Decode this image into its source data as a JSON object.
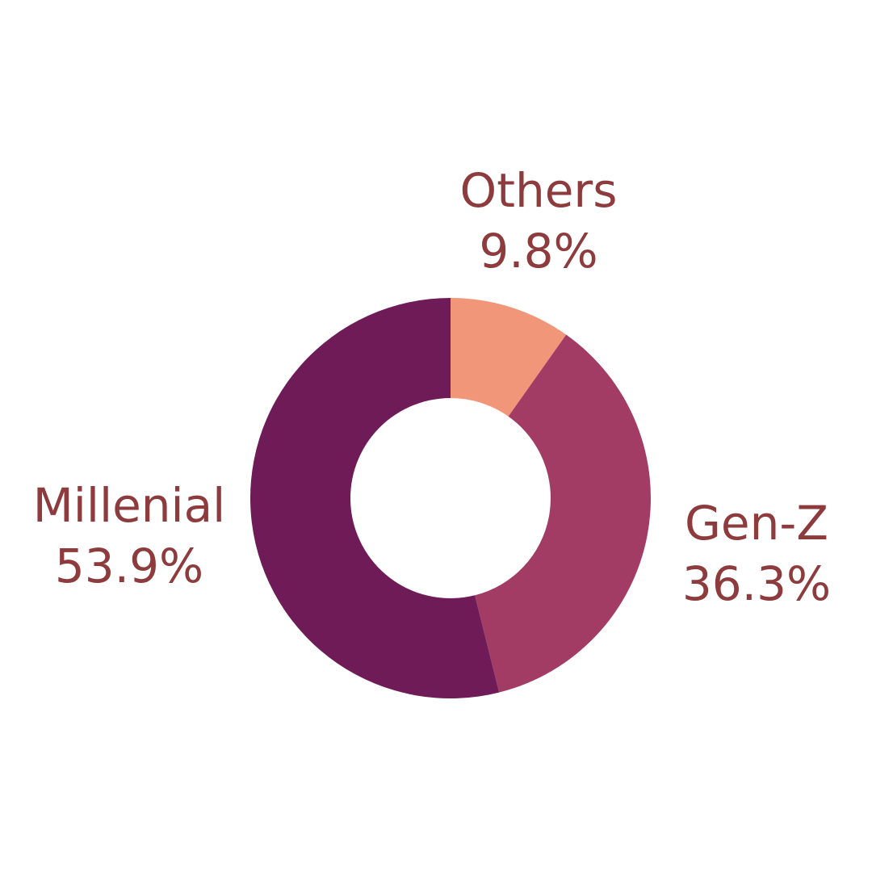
{
  "chart_data": {
    "type": "donut",
    "categories": [
      "Others",
      "Gen-Z",
      "Millenial"
    ],
    "values": [
      9.8,
      36.3,
      53.9
    ],
    "value_labels": [
      "9.8%",
      "36.3%",
      "53.9%"
    ],
    "colors": [
      "#f2967a",
      "#a23c65",
      "#6e1b58"
    ]
  }
}
